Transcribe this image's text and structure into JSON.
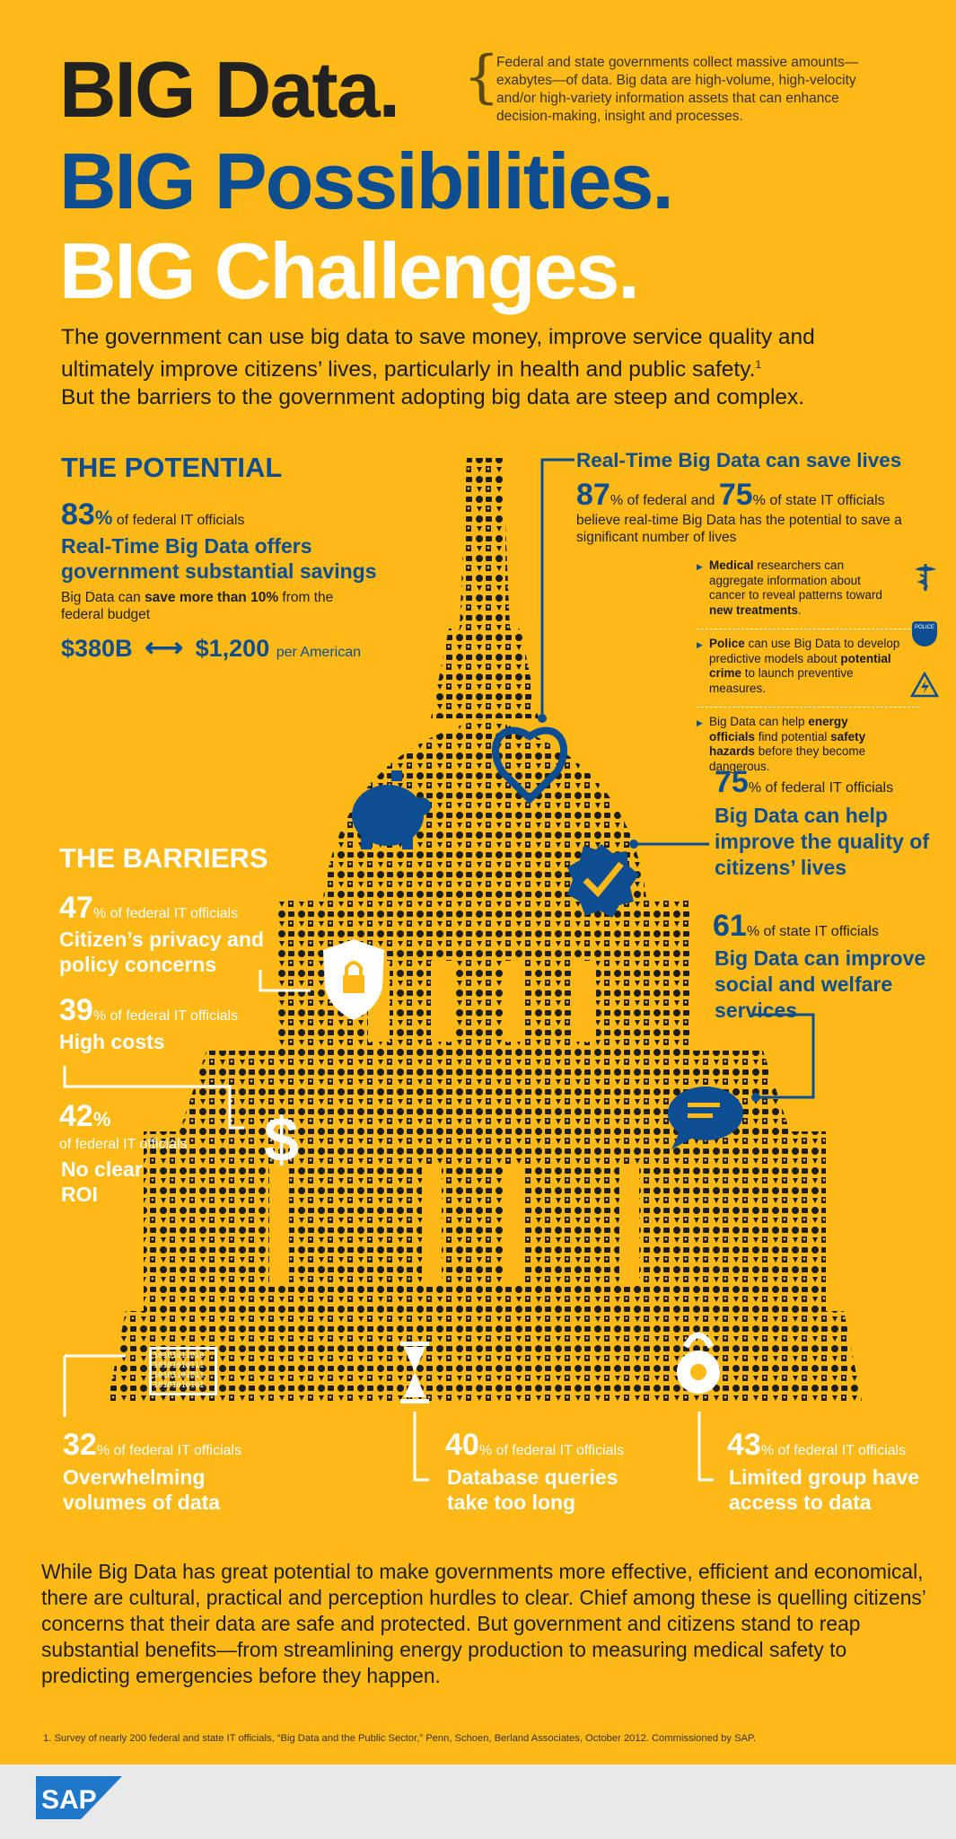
{
  "header": {
    "line1": "BIG Data.",
    "line2": "BIG Possibilities.",
    "line3": "BIG Challenges.",
    "side_text": "Federal and state governments collect massive amounts—exabytes—of data. Big data are high-volume, high-velocity and/or high-variety information assets that can enhance decision-making, insight and processes.",
    "lead": "The government can use big data to save money, improve service quality and ultimately improve citizens’ lives, particularly in health and public safety.",
    "lead_sup": "1",
    "lead2": "But the barriers to the government adopting big data are steep and complex."
  },
  "potential": {
    "title": "THE POTENTIAL",
    "pct": "83",
    "pct_sign": "%",
    "pct_label": "of federal IT officials",
    "claim": "Real-Time Big Data offers government substantial savings",
    "detail_pre": "Big Data can ",
    "detail_bold": "save more than 10%",
    "detail_post": " from the federal budget",
    "amount_left": "$380B",
    "arrow": "⟷",
    "amount_right": "$1,200",
    "amount_suffix": "per American"
  },
  "save_lives": {
    "title": "Real-Time Big Data can save lives",
    "pct1": "87",
    "pct1_label": "% of federal and",
    "pct2": "75",
    "pct2_label": "% of state IT officials",
    "body": "believe real-time Big Data has the potential to save a significant number of lives",
    "bullets": [
      {
        "b1": "Medical",
        "t1": " researchers can aggregate information about cancer to reveal patterns toward ",
        "b2": "new treatments",
        "t2": ".",
        "icon": "caduceus-icon"
      },
      {
        "b1": "Police",
        "t1": " can use Big Data to develop predictive models about ",
        "b2": "potential crime",
        "t2": " to launch preventive measures.",
        "icon": "police-badge-icon"
      },
      {
        "b1": "",
        "t1": "Big Data can help ",
        "b2": "energy officials",
        "t2": " find potential ",
        "b3": "safety hazards",
        "t3": " before they become dangerous.",
        "icon": "warning-icon"
      }
    ],
    "badge_text": "POLICE"
  },
  "quality": {
    "pct": "75",
    "pct_label": "% of federal IT officials",
    "claim": "Big Data can help improve the quality of citizens’ lives"
  },
  "welfare": {
    "pct": "61",
    "pct_label": "% of state IT officials",
    "claim": "Big Data can improve social and welfare services"
  },
  "barriers": {
    "title": "THE BARRIERS",
    "items": [
      {
        "pct": "47",
        "label": "% of federal IT officials",
        "claim": "Citizen’s privacy and policy concerns"
      },
      {
        "pct": "39",
        "label": "% of federal IT officials",
        "claim": "High costs"
      },
      {
        "pct": "42",
        "label": "%",
        "sub": "of federal IT officials",
        "claim": "No clear ROI"
      },
      {
        "pct": "32",
        "label": "% of federal IT officials",
        "claim": "Overwhelming volumes of data"
      },
      {
        "pct": "40",
        "label": "% of federal IT officials",
        "claim": "Database queries take too long"
      },
      {
        "pct": "43",
        "label": "% of federal IT officials",
        "claim": "Limited group have access to data"
      }
    ],
    "binary": [
      "10101011010",
      "10101010111",
      "10101101011",
      "10101010101"
    ],
    "dollar": "$"
  },
  "footer": {
    "text": "While Big Data has great potential to make governments more effective, efficient and economical, there are cultural, practical and perception hurdles to clear. Chief among these is quelling citizens’ concerns that their data are safe and protected. But government and citizens stand to reap substantial benefits—from streamlining energy production to measuring medical safety to predicting emergencies before they happen.",
    "footnote": "1. Survey of nearly 200 federal and state IT officials, “Big Data and the Public Sector,” Penn, Schoen, Berland Associates, October 2012. Commissioned by SAP.",
    "logo": "SAP"
  },
  "colors": {
    "background": "#FCB918",
    "blue": "#0D4E92",
    "dark": "#1a1a1a",
    "white": "#FFFFFF"
  }
}
